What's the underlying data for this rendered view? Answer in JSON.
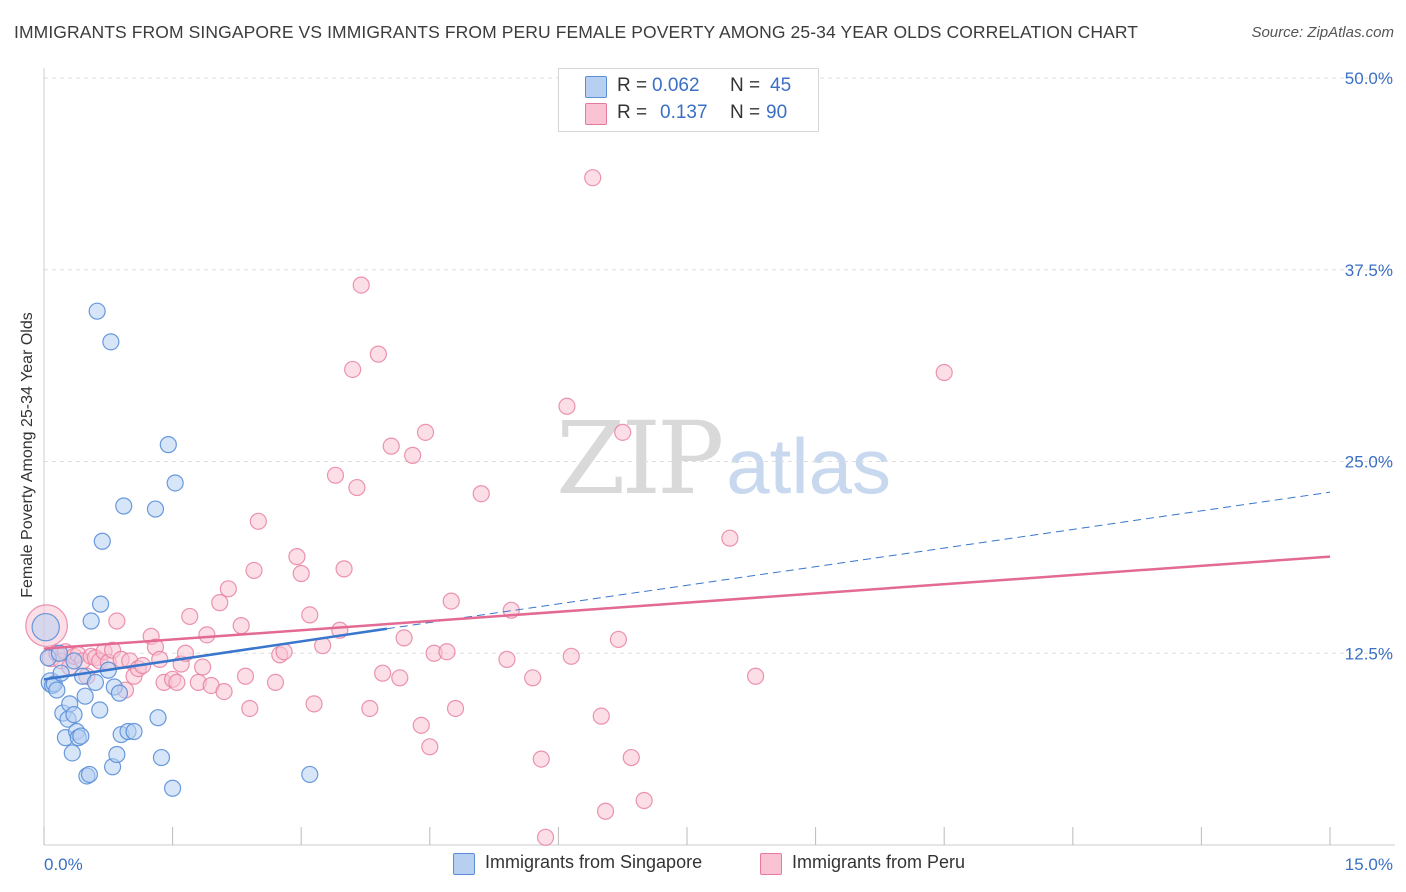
{
  "header": {
    "title": "IMMIGRANTS FROM SINGAPORE VS IMMIGRANTS FROM PERU FEMALE POVERTY AMONG 25-34 YEAR OLDS CORRELATION CHART",
    "source": "Source: ZipAtlas.com"
  },
  "watermark": {
    "zip": "ZIP",
    "atlas": "atlas"
  },
  "legend": {
    "singapore": {
      "r_label": "R =",
      "r_value": "0.062",
      "n_label": "N =",
      "n_value": "45"
    },
    "peru": {
      "r_label": "R =",
      "r_value": "0.137",
      "n_label": "N =",
      "n_value": "90"
    }
  },
  "colors": {
    "singapore_fill": "#b7d0f2",
    "singapore_stroke": "#5a8fd8",
    "singapore_line": "#3a76cc",
    "peru_fill": "#f9c3d3",
    "peru_stroke": "#e67a9d",
    "peru_line": "#e36a93",
    "accent_text": "#3a6fc4",
    "grid": "#dddddd"
  },
  "chart_data": {
    "type": "scatter",
    "title": "IMMIGRANTS FROM SINGAPORE VS IMMIGRANTS FROM PERU FEMALE POVERTY AMONG 25-34 YEAR OLDS CORRELATION CHART",
    "xlabel": "",
    "ylabel": "Female Poverty Among 25-34 Year Olds",
    "xlim": [
      0,
      15
    ],
    "ylim": [
      0,
      50
    ],
    "x_tick_labels": [
      "0.0%",
      "15.0%"
    ],
    "y_ticks": [
      12.5,
      25.0,
      37.5,
      50.0
    ],
    "y_tick_labels": [
      "12.5%",
      "25.0%",
      "37.5%",
      "50.0%"
    ],
    "grid": true,
    "legend": [
      "Immigrants from Singapore",
      "Immigrants from Peru"
    ],
    "series": [
      {
        "name": "Immigrants from Singapore",
        "r": 0.062,
        "n": 45,
        "trend": {
          "solid_x": [
            0,
            4.0
          ],
          "solid_y": [
            10.8,
            14.1
          ],
          "dashed_x": [
            4.0,
            15.0
          ],
          "dashed_y": [
            14.1,
            23.0
          ]
        },
        "points": [
          [
            0.02,
            14.2,
            1.7
          ],
          [
            0.05,
            12.2,
            1.0
          ],
          [
            0.08,
            10.6,
            1.2
          ],
          [
            0.1,
            10.4,
            1.0
          ],
          [
            0.12,
            10.5,
            1.0
          ],
          [
            0.15,
            10.1,
            1.0
          ],
          [
            0.18,
            12.5,
            1.0
          ],
          [
            0.2,
            11.2,
            1.0
          ],
          [
            0.22,
            8.6,
            1.0
          ],
          [
            0.25,
            7.0,
            1.0
          ],
          [
            0.28,
            8.2,
            1.0
          ],
          [
            0.3,
            9.2,
            1.0
          ],
          [
            0.33,
            6.0,
            1.0
          ],
          [
            0.35,
            8.5,
            1.0
          ],
          [
            0.38,
            7.4,
            1.0
          ],
          [
            0.4,
            7.0,
            1.0
          ],
          [
            0.43,
            7.1,
            1.0
          ],
          [
            0.45,
            11.0,
            1.0
          ],
          [
            0.48,
            9.7,
            1.0
          ],
          [
            0.5,
            4.5,
            1.0
          ],
          [
            0.53,
            4.6,
            1.0
          ],
          [
            0.55,
            14.6,
            1.0
          ],
          [
            0.6,
            10.6,
            1.0
          ],
          [
            0.62,
            34.8,
            1.0
          ],
          [
            0.65,
            8.8,
            1.0
          ],
          [
            0.66,
            15.7,
            1.0
          ],
          [
            0.68,
            19.8,
            1.0
          ],
          [
            0.75,
            11.4,
            1.0
          ],
          [
            0.78,
            32.8,
            1.0
          ],
          [
            0.8,
            5.1,
            1.0
          ],
          [
            0.82,
            10.3,
            1.0
          ],
          [
            0.85,
            5.9,
            1.0
          ],
          [
            0.88,
            9.9,
            1.0
          ],
          [
            0.9,
            7.2,
            1.0
          ],
          [
            0.93,
            22.1,
            1.0
          ],
          [
            0.98,
            7.4,
            1.0
          ],
          [
            1.05,
            7.4,
            1.0
          ],
          [
            1.3,
            21.9,
            1.0
          ],
          [
            1.33,
            8.3,
            1.0
          ],
          [
            1.37,
            5.7,
            1.0
          ],
          [
            1.45,
            26.1,
            1.0
          ],
          [
            1.5,
            3.7,
            1.0
          ],
          [
            1.53,
            23.6,
            1.0
          ],
          [
            3.1,
            4.6,
            1.0
          ],
          [
            0.35,
            12.0,
            1.0
          ]
        ]
      },
      {
        "name": "Immigrants from Peru",
        "r": 0.137,
        "n": 90,
        "trend": {
          "x": [
            0,
            15.0
          ],
          "y": [
            12.8,
            18.8
          ]
        },
        "points": [
          [
            0.03,
            14.3,
            2.6
          ],
          [
            0.08,
            12.2,
            1.1
          ],
          [
            0.15,
            12.5,
            1.0
          ],
          [
            0.2,
            12.0,
            1.0
          ],
          [
            0.25,
            12.6,
            1.0
          ],
          [
            0.3,
            11.6,
            1.0
          ],
          [
            0.35,
            12.3,
            1.0
          ],
          [
            0.4,
            12.4,
            1.0
          ],
          [
            0.45,
            12.0,
            1.0
          ],
          [
            0.5,
            11.0,
            1.0
          ],
          [
            0.55,
            12.3,
            1.0
          ],
          [
            0.6,
            12.2,
            1.0
          ],
          [
            0.65,
            12.0,
            1.0
          ],
          [
            0.7,
            12.6,
            1.0
          ],
          [
            0.75,
            11.9,
            1.0
          ],
          [
            0.8,
            12.7,
            1.0
          ],
          [
            0.85,
            14.6,
            1.0
          ],
          [
            0.9,
            12.1,
            1.0
          ],
          [
            0.95,
            10.1,
            1.0
          ],
          [
            1.0,
            12.0,
            1.0
          ],
          [
            1.05,
            11.0,
            1.0
          ],
          [
            1.1,
            11.5,
            1.0
          ],
          [
            1.15,
            11.7,
            1.0
          ],
          [
            1.25,
            13.6,
            1.0
          ],
          [
            1.3,
            12.9,
            1.0
          ],
          [
            1.35,
            12.1,
            1.0
          ],
          [
            1.4,
            10.6,
            1.0
          ],
          [
            1.5,
            10.8,
            1.0
          ],
          [
            1.55,
            10.6,
            1.0
          ],
          [
            1.6,
            11.8,
            1.0
          ],
          [
            1.65,
            12.5,
            1.0
          ],
          [
            1.7,
            14.9,
            1.0
          ],
          [
            1.8,
            10.6,
            1.0
          ],
          [
            1.85,
            11.6,
            1.0
          ],
          [
            1.9,
            13.7,
            1.0
          ],
          [
            1.95,
            10.4,
            1.0
          ],
          [
            2.05,
            15.8,
            1.0
          ],
          [
            2.1,
            10.0,
            1.0
          ],
          [
            2.15,
            16.7,
            1.0
          ],
          [
            2.3,
            14.3,
            1.0
          ],
          [
            2.35,
            11.0,
            1.0
          ],
          [
            2.4,
            8.9,
            1.0
          ],
          [
            2.45,
            17.9,
            1.0
          ],
          [
            2.5,
            21.1,
            1.0
          ],
          [
            2.7,
            10.6,
            1.0
          ],
          [
            2.75,
            12.4,
            1.0
          ],
          [
            2.8,
            12.6,
            1.0
          ],
          [
            2.95,
            18.8,
            1.0
          ],
          [
            3.0,
            17.7,
            1.0
          ],
          [
            3.1,
            15.0,
            1.0
          ],
          [
            3.15,
            9.2,
            1.0
          ],
          [
            3.25,
            13.0,
            1.0
          ],
          [
            3.4,
            24.1,
            1.0
          ],
          [
            3.45,
            14.0,
            1.0
          ],
          [
            3.5,
            18.0,
            1.0
          ],
          [
            3.6,
            31.0,
            1.0
          ],
          [
            3.65,
            23.3,
            1.0
          ],
          [
            3.7,
            36.5,
            1.0
          ],
          [
            3.8,
            8.9,
            1.0
          ],
          [
            3.9,
            32.0,
            1.0
          ],
          [
            3.95,
            11.2,
            1.0
          ],
          [
            4.05,
            26.0,
            1.0
          ],
          [
            4.15,
            10.9,
            1.0
          ],
          [
            4.2,
            13.5,
            1.0
          ],
          [
            4.3,
            25.4,
            1.0
          ],
          [
            4.4,
            7.8,
            1.0
          ],
          [
            4.45,
            26.9,
            1.0
          ],
          [
            4.5,
            6.4,
            1.0
          ],
          [
            4.55,
            12.5,
            1.0
          ],
          [
            4.7,
            12.6,
            1.0
          ],
          [
            4.75,
            15.9,
            1.0
          ],
          [
            4.8,
            8.9,
            1.0
          ],
          [
            5.1,
            22.9,
            1.0
          ],
          [
            5.4,
            12.1,
            1.0
          ],
          [
            5.45,
            15.3,
            1.0
          ],
          [
            5.7,
            10.9,
            1.0
          ],
          [
            5.8,
            5.6,
            1.0
          ],
          [
            5.85,
            0.5,
            1.0
          ],
          [
            6.1,
            28.6,
            1.0
          ],
          [
            6.15,
            12.3,
            1.0
          ],
          [
            6.4,
            43.5,
            1.0
          ],
          [
            6.5,
            8.4,
            1.0
          ],
          [
            6.55,
            2.2,
            1.0
          ],
          [
            6.7,
            13.4,
            1.0
          ],
          [
            6.75,
            26.9,
            1.0
          ],
          [
            6.85,
            5.7,
            1.0
          ],
          [
            7.0,
            2.9,
            1.0
          ],
          [
            8.0,
            20.0,
            1.0
          ],
          [
            8.3,
            11.0,
            1.0
          ],
          [
            10.5,
            30.8,
            1.0
          ]
        ]
      }
    ]
  },
  "bottom_legend": {
    "singapore": "Immigrants from Singapore",
    "peru": "Immigrants from Peru"
  }
}
